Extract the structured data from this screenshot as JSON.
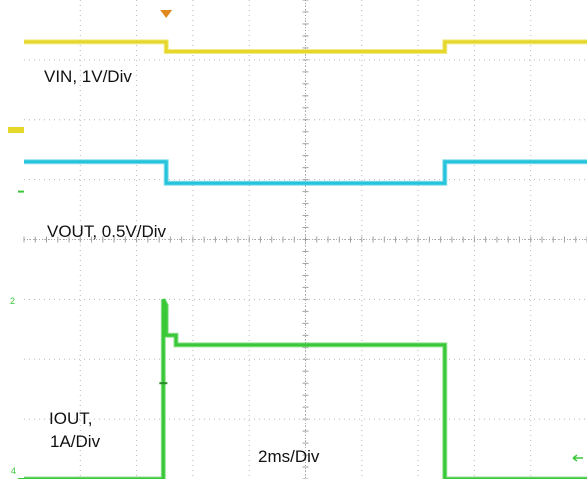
{
  "chart_data": {
    "type": "line",
    "title": "",
    "xlabel": "",
    "ylabel": "",
    "grid": true,
    "horizontal_divisions": 10,
    "vertical_divisions": 8,
    "time_per_div_label": "2ms/Div",
    "x_unit": "ms",
    "x_range_ms": [
      -4,
      16
    ],
    "channel_markers": [
      "2",
      "4"
    ],
    "series": [
      {
        "name": "VIN, 1V/Div",
        "color": "#e6d82a",
        "volts_per_div": 1,
        "x_ms": [
          -4,
          1.05,
          1.05,
          10.95,
          10.95,
          16
        ],
        "y_div": [
          3.3,
          3.3,
          3.14,
          3.14,
          3.3,
          3.3
        ]
      },
      {
        "name": "VOUT, 0.5V/Div",
        "color": "#26c4dc",
        "volts_per_div": 0.5,
        "x_ms": [
          -4,
          1.05,
          1.05,
          10.95,
          10.95,
          16
        ],
        "y_div": [
          1.3,
          1.3,
          0.94,
          0.94,
          1.3,
          1.3
        ]
      },
      {
        "name": "IOUT, 1A/Div",
        "label_lines": [
          "IOUT,",
          "1A/Div"
        ],
        "color": "#38c838",
        "amps_per_div": 1,
        "x_ms": [
          -4,
          0.95,
          0.95,
          1.05,
          1.05,
          1.4,
          1.4,
          10.95,
          10.95,
          16
        ],
        "y_div": [
          -4.0,
          -4.0,
          -1.0,
          -1.1,
          -1.6,
          -1.6,
          -1.76,
          -1.76,
          -4.0,
          -4.0
        ]
      }
    ]
  }
}
